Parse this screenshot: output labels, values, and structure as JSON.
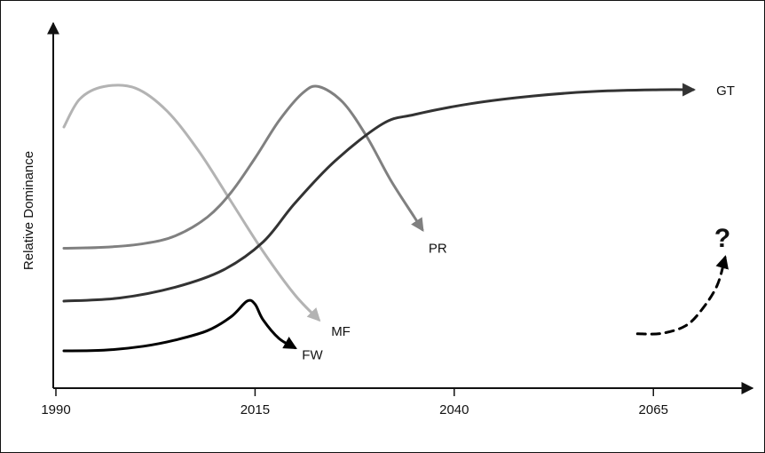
{
  "chart_data": {
    "type": "line",
    "title": "",
    "xlabel": "",
    "ylabel": "Relative Dominance",
    "xlim": [
      1990,
      2075
    ],
    "ylim": [
      0,
      100
    ],
    "x_ticks": [
      1990,
      2015,
      2040,
      2065
    ],
    "x_tick_labels": [
      "1990",
      "2015",
      "2040",
      "2065"
    ],
    "grid": false,
    "legend": "none",
    "series": [
      {
        "name": "MF",
        "color": "#b3b3b3",
        "x": [
          1991,
          1993,
          1996,
          2000,
          2004,
          2008,
          2012,
          2016,
          2020,
          2023
        ],
        "y": [
          82,
          91,
          95,
          94.5,
          87,
          74,
          58,
          42,
          28,
          20
        ]
      },
      {
        "name": "PR",
        "color": "#808080",
        "x": [
          1991,
          1996,
          2001,
          2005,
          2009,
          2012,
          2015,
          2018,
          2021,
          2023,
          2026,
          2029,
          2032,
          2035,
          2036
        ],
        "y": [
          43,
          43.3,
          44.5,
          47,
          53,
          61,
          72,
          84,
          93,
          95,
          90,
          79,
          65,
          53,
          49
        ]
      },
      {
        "name": "GT",
        "color": "#333333",
        "x": [
          1991,
          1998,
          2005,
          2011,
          2016,
          2020,
          2025,
          2031,
          2035,
          2042,
          2050,
          2058,
          2066,
          2070
        ],
        "y": [
          26,
          27,
          30.5,
          36,
          45,
          57.5,
          71,
          83,
          86,
          89.5,
          92,
          93.5,
          94,
          94
        ]
      },
      {
        "name": "FW",
        "color": "#000000",
        "x": [
          1991,
          1996,
          2001,
          2005,
          2009,
          2012,
          2014,
          2015,
          2016,
          2018,
          2020
        ],
        "y": [
          10,
          10.2,
          11.5,
          13.5,
          16.5,
          21,
          26,
          25,
          20,
          14,
          11
        ]
      },
      {
        "name": "?",
        "color": "#000000",
        "dashed": true,
        "x": [
          2063,
          2066,
          2069,
          2071,
          2073,
          2074
        ],
        "y": [
          15.5,
          15.6,
          18,
          23,
          31,
          40
        ]
      }
    ]
  }
}
